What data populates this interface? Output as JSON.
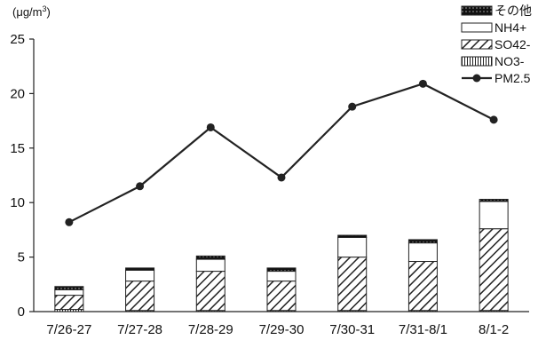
{
  "chart_data": {
    "type": "bar",
    "y_unit_label": "(μg/m",
    "y_unit_superscript": "3",
    "y_unit_close": ")",
    "ylim": [
      0,
      25
    ],
    "yticks": [
      "0",
      "5",
      "10",
      "15",
      "20",
      "25"
    ],
    "categories": [
      "7/26-27",
      "7/27-28",
      "7/28-29",
      "7/29-30",
      "7/30-31",
      "7/31-8/1",
      "8/1-2"
    ],
    "series": [
      {
        "name": "NO3-",
        "kind": "bar",
        "pattern": "vertical-lines",
        "values": [
          0.2,
          0.1,
          0.1,
          0.1,
          0.1,
          0.1,
          0.1
        ]
      },
      {
        "name": "SO42-",
        "kind": "bar",
        "pattern": "diagonal-hatch",
        "values": [
          1.3,
          2.7,
          3.6,
          2.7,
          4.9,
          4.5,
          7.5
        ]
      },
      {
        "name": "NH4+",
        "kind": "bar",
        "pattern": "white",
        "values": [
          0.5,
          1.0,
          1.1,
          0.9,
          1.8,
          1.7,
          2.5
        ]
      },
      {
        "name": "その他",
        "kind": "bar",
        "pattern": "black-dotted",
        "values": [
          0.3,
          0.2,
          0.3,
          0.3,
          0.2,
          0.3,
          0.2
        ]
      },
      {
        "name": "PM2.5",
        "kind": "line",
        "marker": "circle",
        "values": [
          8.2,
          11.5,
          16.9,
          12.3,
          18.8,
          20.9,
          17.6
        ]
      }
    ],
    "legend_order": [
      "その他",
      "NH4+",
      "SO42-",
      "NO3-",
      "PM2.5"
    ],
    "legend_position": "top-right",
    "grid": false,
    "colors": {
      "line": "#222222",
      "bar_stroke": "#222222",
      "background": "#ffffff"
    }
  }
}
